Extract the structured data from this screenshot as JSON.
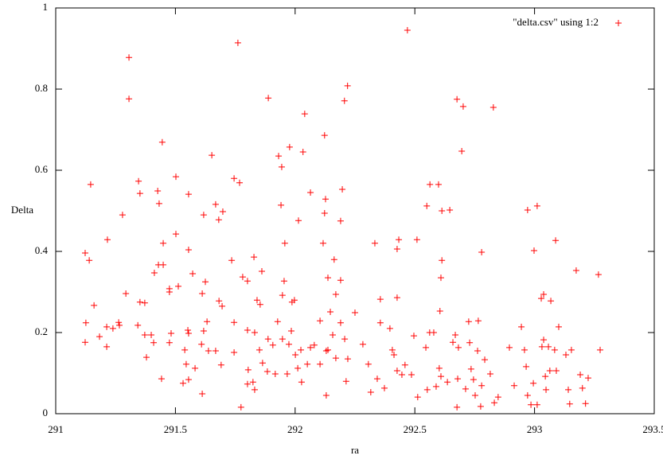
{
  "chart_data": {
    "type": "scatter",
    "xlabel": "ra",
    "ylabel": "Delta",
    "xlim": [
      291,
      293.5
    ],
    "xticks": [
      291,
      291.5,
      292,
      292.5,
      293,
      293.5
    ],
    "ylim": [
      0,
      1
    ],
    "yticks": [
      0,
      0.2,
      0.4,
      0.6,
      0.8,
      1
    ],
    "legend": "top-right",
    "x": [
      291.761,
      291.306,
      291.306,
      292.469,
      292.219,
      291.888,
      292.206,
      292.676,
      292.702,
      292.828,
      291.445,
      291.652,
      291.931,
      291.977,
      291.944,
      292.04,
      292.033,
      292.123,
      292.696,
      291.146,
      291.346,
      291.352,
      291.426,
      291.432,
      291.502,
      291.555,
      291.618,
      291.668,
      291.681,
      291.698,
      291.745,
      291.768,
      291.941,
      292.014,
      292.064,
      292.127,
      292.123,
      292.197,
      292.19,
      292.563,
      292.599,
      292.55,
      292.613,
      292.646,
      292.971,
      293.011,
      291.279,
      291.216,
      291.123,
      291.14,
      291.449,
      291.502,
      291.555,
      291.429,
      291.449,
      291.412,
      291.475,
      291.475,
      291.512,
      291.572,
      291.625,
      291.735,
      291.781,
      291.801,
      291.828,
      291.861,
      291.957,
      291.954,
      292.117,
      292.163,
      292.137,
      292.19,
      292.333,
      292.433,
      292.426,
      292.509,
      292.613,
      292.609,
      292.779,
      292.998,
      293.088,
      293.267,
      293.174,
      293.038,
      293.028,
      293.068,
      291.293,
      291.16,
      291.352,
      291.372,
      291.612,
      291.682,
      291.695,
      291.841,
      291.854,
      291.947,
      291.987,
      291.997,
      292.17,
      292.147,
      292.25,
      292.356,
      292.426,
      292.605,
      291.126,
      291.123,
      291.183,
      291.213,
      291.213,
      291.239,
      291.266,
      291.263,
      291.343,
      291.372,
      291.379,
      291.399,
      291.409,
      291.442,
      291.475,
      291.482,
      291.539,
      291.552,
      291.555,
      291.545,
      291.555,
      291.532,
      291.582,
      291.609,
      291.612,
      291.618,
      291.632,
      291.638,
      291.668,
      291.691,
      291.745,
      291.745,
      291.774,
      291.801,
      291.804,
      291.801,
      291.824,
      291.831,
      291.831,
      291.851,
      291.864,
      291.887,
      291.884,
      291.907,
      291.917,
      291.927,
      291.947,
      291.967,
      291.974,
      291.984,
      292.001,
      292.011,
      292.024,
      292.027,
      292.051,
      292.064,
      292.08,
      292.104,
      292.104,
      292.13,
      292.13,
      292.137,
      292.157,
      292.17,
      292.19,
      292.207,
      292.213,
      292.22,
      292.283,
      292.306,
      292.316,
      292.343,
      292.356,
      292.373,
      292.396,
      292.406,
      292.413,
      292.426,
      292.446,
      292.459,
      292.486,
      292.496,
      292.512,
      292.546,
      292.552,
      292.562,
      292.579,
      292.589,
      292.602,
      292.609,
      292.636,
      292.659,
      292.669,
      292.676,
      292.682,
      292.679,
      292.712,
      292.725,
      292.729,
      292.735,
      292.745,
      292.752,
      292.762,
      292.765,
      292.779,
      292.775,
      292.792,
      292.815,
      292.832,
      292.848,
      292.895,
      292.915,
      292.945,
      292.958,
      292.965,
      292.971,
      292.985,
      292.995,
      293.031,
      293.045,
      293.048,
      293.058,
      293.064,
      293.084,
      293.091,
      293.101,
      293.131,
      293.141,
      293.147,
      293.191,
      293.2,
      293.213,
      293.224,
      293.274,
      293.038,
      293.011,
      293.154
    ],
    "series": [
      {
        "name": "\"delta.csv\" using 1:2",
        "color": "#ff0000",
        "values": [
          0.914,
          0.878,
          0.776,
          0.945,
          0.808,
          0.778,
          0.771,
          0.775,
          0.757,
          0.755,
          0.669,
          0.637,
          0.635,
          0.657,
          0.608,
          0.739,
          0.645,
          0.686,
          0.647,
          0.565,
          0.573,
          0.543,
          0.549,
          0.518,
          0.584,
          0.541,
          0.49,
          0.516,
          0.478,
          0.498,
          0.58,
          0.569,
          0.514,
          0.476,
          0.545,
          0.529,
          0.494,
          0.553,
          0.475,
          0.565,
          0.565,
          0.512,
          0.5,
          0.502,
          0.502,
          0.512,
          0.49,
          0.429,
          0.396,
          0.378,
          0.42,
          0.443,
          0.404,
          0.367,
          0.367,
          0.347,
          0.308,
          0.3,
          0.314,
          0.345,
          0.325,
          0.378,
          0.337,
          0.327,
          0.386,
          0.351,
          0.42,
          0.327,
          0.42,
          0.38,
          0.335,
          0.329,
          0.42,
          0.429,
          0.406,
          0.429,
          0.378,
          0.335,
          0.398,
          0.402,
          0.427,
          0.343,
          0.353,
          0.294,
          0.284,
          0.278,
          0.296,
          0.267,
          0.275,
          0.273,
          0.296,
          0.278,
          0.265,
          0.28,
          0.269,
          0.292,
          0.275,
          0.28,
          0.294,
          0.251,
          0.249,
          0.282,
          0.286,
          0.253,
          0.224,
          0.176,
          0.19,
          0.214,
          0.165,
          0.21,
          0.218,
          0.225,
          0.218,
          0.194,
          0.139,
          0.194,
          0.175,
          0.086,
          0.175,
          0.198,
          0.157,
          0.206,
          0.198,
          0.122,
          0.084,
          0.075,
          0.112,
          0.171,
          0.049,
          0.204,
          0.227,
          0.155,
          0.155,
          0.12,
          0.151,
          0.225,
          0.016,
          0.206,
          0.108,
          0.073,
          0.078,
          0.059,
          0.2,
          0.157,
          0.125,
          0.184,
          0.104,
          0.169,
          0.098,
          0.227,
          0.184,
          0.098,
          0.171,
          0.204,
          0.145,
          0.112,
          0.157,
          0.078,
          0.122,
          0.163,
          0.169,
          0.229,
          0.122,
          0.155,
          0.045,
          0.157,
          0.194,
          0.137,
          0.224,
          0.184,
          0.08,
          0.135,
          0.171,
          0.122,
          0.053,
          0.086,
          0.224,
          0.063,
          0.21,
          0.157,
          0.145,
          0.106,
          0.096,
          0.12,
          0.096,
          0.192,
          0.041,
          0.163,
          0.059,
          0.2,
          0.2,
          0.067,
          0.112,
          0.092,
          0.078,
          0.176,
          0.194,
          0.016,
          0.163,
          0.086,
          0.061,
          0.227,
          0.175,
          0.11,
          0.084,
          0.045,
          0.155,
          0.229,
          0.069,
          0.018,
          0.133,
          0.098,
          0.027,
          0.041,
          0.163,
          0.069,
          0.214,
          0.157,
          0.116,
          0.045,
          0.022,
          0.075,
          0.165,
          0.092,
          0.059,
          0.165,
          0.106,
          0.157,
          0.106,
          0.214,
          0.145,
          0.059,
          0.024,
          0.096,
          0.063,
          0.025,
          0.088,
          0.157,
          0.182,
          0.022,
          0.157
        ]
      }
    ]
  }
}
